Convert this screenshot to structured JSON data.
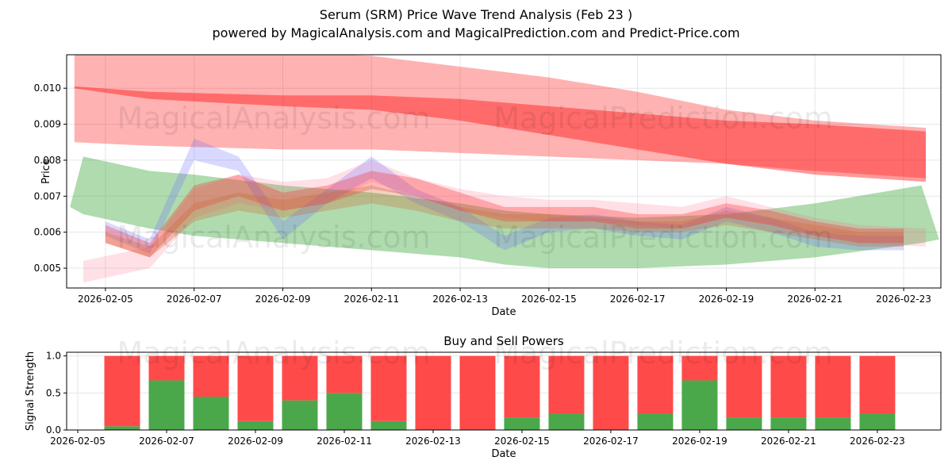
{
  "title": "Serum (SRM) Price Wave Trend Analysis (Feb 23 )",
  "subtitle": "powered by MagicalAnalysis.com and MagicalPrediction.com and Predict-Price.com",
  "watermarks": [
    "MagicalAnalysis.com",
    "MagicalPrediction.com"
  ],
  "colors": {
    "red": "#ff0000",
    "green": "#2ca02c",
    "blue": "#6666ff",
    "buy": "#4aa84a",
    "sell": "#ff4a4a"
  },
  "chart_data": [
    {
      "type": "area",
      "title": "",
      "xlabel": "Date",
      "ylabel": "Price",
      "ylim": [
        0.00445,
        0.01093
      ],
      "xlim_day_of_feb": [
        4.125,
        23.84
      ],
      "yticks": [
        "0.005",
        "0.006",
        "0.007",
        "0.008",
        "0.009",
        "0.010"
      ],
      "ytick_values": [
        0.005,
        0.006,
        0.007,
        0.008,
        0.009,
        0.01
      ],
      "xticks": [
        "2026-02-05",
        "2026-02-07",
        "2026-02-09",
        "2026-02-11",
        "2026-02-13",
        "2026-02-15",
        "2026-02-17",
        "2026-02-19",
        "2026-02-21",
        "2026-02-23"
      ],
      "xtick_days": [
        5,
        7,
        9,
        11,
        13,
        15,
        17,
        19,
        21,
        23
      ],
      "bands": [
        {
          "name": "wide-red",
          "color": "#ff0000",
          "opacity": 0.3,
          "x": [
            4.3,
            6,
            9,
            11,
            13,
            15,
            17,
            19,
            21,
            23.5
          ],
          "upper": [
            0.011,
            0.011,
            0.011,
            0.0109,
            0.0106,
            0.0103,
            0.0099,
            0.0094,
            0.0091,
            0.0089
          ],
          "lower": [
            0.0085,
            0.0084,
            0.0083,
            0.0083,
            0.0082,
            0.0081,
            0.008,
            0.0079,
            0.0077,
            0.0075
          ]
        },
        {
          "name": "dark-red",
          "color": "#ff0000",
          "opacity": 0.4,
          "x": [
            4.3,
            6,
            9,
            11,
            13,
            15,
            17,
            19,
            21,
            23.5
          ],
          "upper": [
            0.01005,
            0.0099,
            0.0098,
            0.0098,
            0.0097,
            0.0095,
            0.0093,
            0.0091,
            0.009,
            0.0088
          ],
          "lower": [
            0.01,
            0.0097,
            0.0095,
            0.0094,
            0.0091,
            0.0087,
            0.0083,
            0.0079,
            0.0076,
            0.0074
          ]
        },
        {
          "name": "green",
          "color": "#2ca02c",
          "opacity": 0.38,
          "x": [
            4.2,
            4.5,
            6,
            7,
            9,
            11,
            13,
            14,
            15,
            17,
            19,
            21,
            23.4,
            23.8
          ],
          "upper": [
            0.0067,
            0.0081,
            0.0077,
            0.0076,
            0.0073,
            0.0071,
            0.0068,
            0.0066,
            0.0065,
            0.0064,
            0.0065,
            0.0068,
            0.0073,
            0.0058
          ],
          "lower": [
            0.0067,
            0.0065,
            0.0061,
            0.0059,
            0.0057,
            0.0055,
            0.0053,
            0.0051,
            0.005,
            0.005,
            0.0051,
            0.0053,
            0.0057,
            0.0058
          ]
        },
        {
          "name": "pink-low",
          "color": "#ff6680",
          "opacity": 0.2,
          "x": [
            4.5,
            6,
            7,
            8,
            9,
            10,
            11,
            12,
            13,
            14,
            15,
            16,
            17,
            18,
            19,
            20,
            21,
            22,
            23.5
          ],
          "upper": [
            0.0052,
            0.0056,
            0.0072,
            0.0076,
            0.0074,
            0.0075,
            0.008,
            0.0075,
            0.0072,
            0.007,
            0.0069,
            0.0069,
            0.0068,
            0.0067,
            0.007,
            0.0067,
            0.0064,
            0.0062,
            0.0061
          ],
          "lower": [
            0.0046,
            0.005,
            0.0064,
            0.0068,
            0.0066,
            0.0068,
            0.0074,
            0.007,
            0.0066,
            0.0064,
            0.0063,
            0.0063,
            0.0062,
            0.0061,
            0.0064,
            0.0062,
            0.0059,
            0.0057,
            0.0056
          ]
        },
        {
          "name": "blue-wave",
          "color": "#6666ff",
          "opacity": 0.25,
          "x": [
            5,
            6,
            7,
            8,
            9,
            10,
            11,
            12,
            13,
            14,
            15,
            16,
            17,
            18,
            19,
            20,
            21,
            22,
            23
          ],
          "upper": [
            0.0063,
            0.0058,
            0.0086,
            0.0081,
            0.0063,
            0.0072,
            0.0081,
            0.0072,
            0.0067,
            0.0059,
            0.0064,
            0.0065,
            0.0063,
            0.0062,
            0.0067,
            0.0064,
            0.006,
            0.0059,
            0.0059
          ],
          "lower": [
            0.0059,
            0.0054,
            0.008,
            0.0077,
            0.0058,
            0.0068,
            0.0075,
            0.0068,
            0.0063,
            0.0055,
            0.006,
            0.0061,
            0.0059,
            0.0058,
            0.0063,
            0.006,
            0.0056,
            0.0055,
            0.0055
          ]
        },
        {
          "name": "red-wave",
          "color": "#ff2020",
          "opacity": 0.3,
          "x": [
            5,
            6,
            7,
            8,
            9,
            10,
            11,
            12,
            13,
            14,
            15,
            16,
            17,
            18,
            19,
            20,
            21,
            22,
            23
          ],
          "upper": [
            0.0062,
            0.0057,
            0.0073,
            0.0076,
            0.0071,
            0.0073,
            0.0077,
            0.0075,
            0.0071,
            0.0067,
            0.0067,
            0.0067,
            0.0065,
            0.0065,
            0.0068,
            0.0066,
            0.0063,
            0.0061,
            0.0061
          ],
          "lower": [
            0.0057,
            0.0053,
            0.0066,
            0.007,
            0.0066,
            0.0068,
            0.0072,
            0.007,
            0.0066,
            0.0063,
            0.0063,
            0.0063,
            0.0061,
            0.0061,
            0.0064,
            0.0062,
            0.0059,
            0.0057,
            0.0057
          ]
        },
        {
          "name": "orange-wave",
          "color": "#cc6633",
          "opacity": 0.3,
          "x": [
            5,
            6,
            7,
            8,
            9,
            10,
            11,
            12,
            13,
            14,
            15,
            16,
            17,
            18,
            19,
            20,
            21,
            22,
            23
          ],
          "upper": [
            0.006,
            0.0056,
            0.0068,
            0.0071,
            0.0069,
            0.0071,
            0.0073,
            0.007,
            0.0067,
            0.0065,
            0.0065,
            0.0064,
            0.0063,
            0.0063,
            0.0066,
            0.0064,
            0.0062,
            0.006,
            0.006
          ],
          "lower": [
            0.0057,
            0.0053,
            0.0063,
            0.0066,
            0.0064,
            0.0066,
            0.0068,
            0.0066,
            0.0063,
            0.0061,
            0.0061,
            0.0061,
            0.006,
            0.006,
            0.0062,
            0.006,
            0.0058,
            0.0056,
            0.0056
          ]
        }
      ]
    },
    {
      "type": "bar",
      "title": "Buy and Sell Powers",
      "xlabel": "Date",
      "ylabel": "Signal Strength",
      "ylim": [
        0,
        1.05
      ],
      "xlim_day_of_feb": [
        4.75,
        24.43
      ],
      "yticks": [
        "0.0",
        "0.5",
        "1.0"
      ],
      "ytick_values": [
        0,
        0.5,
        1.0
      ],
      "xticks": [
        "2026-02-05",
        "2026-02-07",
        "2026-02-09",
        "2026-02-11",
        "2026-02-13",
        "2026-02-15",
        "2026-02-17",
        "2026-02-19",
        "2026-02-21",
        "2026-02-23"
      ],
      "xtick_days": [
        5,
        7,
        9,
        11,
        13,
        15,
        17,
        19,
        21,
        23
      ],
      "days": [
        6,
        7,
        8,
        9,
        10,
        11,
        12,
        13,
        14,
        15,
        16,
        17,
        18,
        19,
        20,
        21,
        22,
        23
      ],
      "series": [
        {
          "name": "Buy",
          "values": [
            0.05,
            0.67,
            0.45,
            0.12,
            0.4,
            0.5,
            0.12,
            0,
            0,
            0.17,
            0.22,
            0,
            0.22,
            0.67,
            0.17,
            0.17,
            0.17,
            0.22
          ]
        },
        {
          "name": "Sell",
          "values": [
            0.95,
            0.33,
            0.55,
            0.88,
            0.6,
            0.5,
            0.88,
            1,
            1,
            0.83,
            0.78,
            1,
            0.78,
            0.33,
            0.83,
            0.83,
            0.83,
            0.78
          ]
        }
      ]
    }
  ]
}
